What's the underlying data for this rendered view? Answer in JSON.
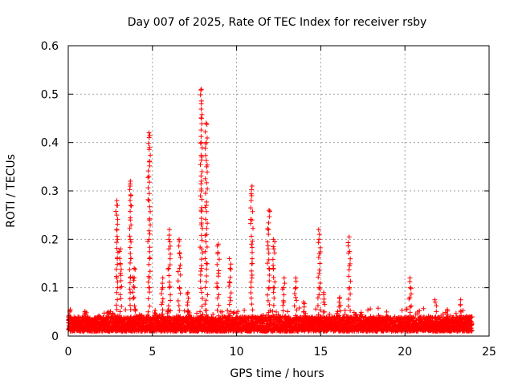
{
  "chart_data": {
    "type": "scatter",
    "title": "Day 007 of 2025, Rate Of TEC Index for receiver rsby",
    "xlabel": "GPS time / hours",
    "ylabel": "ROTI / TECUs",
    "xlim": [
      0,
      25
    ],
    "ylim": [
      0,
      0.6
    ],
    "x_ticks": [
      0,
      5,
      10,
      15,
      20,
      25
    ],
    "y_ticks": [
      0,
      0.1,
      0.2,
      0.3,
      0.4,
      0.5,
      0.6
    ],
    "x_tick_labels": [
      "0",
      "5",
      "10",
      "15",
      "20",
      "25"
    ],
    "y_tick_labels": [
      "0",
      "0.1",
      "0.2",
      "0.3",
      "0.4",
      "0.5",
      "0.6"
    ],
    "grid": true,
    "marker": "+",
    "color": "#ff0000",
    "series": [
      {
        "name": "ROTI",
        "baseline": {
          "x_start": 0.0,
          "x_end": 24.0,
          "typical_low": 0.01,
          "typical_high": 0.04
        },
        "spikes": [
          {
            "x": 0.1,
            "values": [
              0.04,
              0.05,
              0.055
            ]
          },
          {
            "x": 1.0,
            "values": [
              0.045,
              0.05
            ]
          },
          {
            "x": 2.4,
            "values": [
              0.045,
              0.05
            ]
          },
          {
            "x": 2.9,
            "values": [
              0.12,
              0.16,
              0.2,
              0.22,
              0.25,
              0.27,
              0.28
            ]
          },
          {
            "x": 3.1,
            "values": [
              0.1,
              0.13,
              0.15,
              0.18
            ]
          },
          {
            "x": 3.7,
            "values": [
              0.12,
              0.16,
              0.2,
              0.24,
              0.27,
              0.29,
              0.31,
              0.32
            ]
          },
          {
            "x": 3.9,
            "values": [
              0.08,
              0.1,
              0.12,
              0.14
            ]
          },
          {
            "x": 4.8,
            "values": [
              0.1,
              0.12,
              0.16,
              0.2,
              0.24,
              0.28,
              0.33,
              0.36,
              0.39,
              0.41,
              0.42
            ]
          },
          {
            "x": 5.6,
            "values": [
              0.07,
              0.1,
              0.12
            ]
          },
          {
            "x": 6.0,
            "values": [
              0.1,
              0.14,
              0.18,
              0.2,
              0.22
            ]
          },
          {
            "x": 6.6,
            "values": [
              0.1,
              0.14,
              0.17,
              0.2
            ]
          },
          {
            "x": 7.1,
            "values": [
              0.05,
              0.07,
              0.09
            ]
          },
          {
            "x": 7.9,
            "values": [
              0.14,
              0.18,
              0.23,
              0.26,
              0.3,
              0.32,
              0.37,
              0.4,
              0.45,
              0.48,
              0.51
            ]
          },
          {
            "x": 8.2,
            "values": [
              0.15,
              0.21,
              0.27,
              0.35,
              0.4,
              0.44
            ]
          },
          {
            "x": 8.9,
            "values": [
              0.1,
              0.13,
              0.17,
              0.19
            ]
          },
          {
            "x": 9.6,
            "values": [
              0.08,
              0.11,
              0.14,
              0.16
            ]
          },
          {
            "x": 10.9,
            "values": [
              0.12,
              0.15,
              0.19,
              0.24,
              0.29,
              0.31
            ]
          },
          {
            "x": 11.9,
            "values": [
              0.1,
              0.14,
              0.18,
              0.22,
              0.26
            ]
          },
          {
            "x": 12.2,
            "values": [
              0.1,
              0.14,
              0.18,
              0.2
            ]
          },
          {
            "x": 12.8,
            "values": [
              0.07,
              0.1,
              0.12
            ]
          },
          {
            "x": 13.5,
            "values": [
              0.08,
              0.1,
              0.12
            ]
          },
          {
            "x": 14.0,
            "values": [
              0.05,
              0.06,
              0.07
            ]
          },
          {
            "x": 14.9,
            "values": [
              0.1,
              0.13,
              0.17,
              0.2,
              0.22
            ]
          },
          {
            "x": 15.2,
            "values": [
              0.05,
              0.07,
              0.09
            ]
          },
          {
            "x": 16.1,
            "values": [
              0.06,
              0.07,
              0.08
            ]
          },
          {
            "x": 16.7,
            "values": [
              0.1,
              0.145,
              0.175,
              0.205
            ]
          },
          {
            "x": 18.9,
            "values": [
              0.04,
              0.05
            ]
          },
          {
            "x": 20.3,
            "values": [
              0.06,
              0.08,
              0.1,
              0.12
            ]
          },
          {
            "x": 21.8,
            "values": [
              0.07,
              0.075
            ]
          },
          {
            "x": 22.5,
            "values": [
              0.045,
              0.055
            ]
          },
          {
            "x": 23.3,
            "values": [
              0.05,
              0.065,
              0.075
            ]
          }
        ]
      }
    ]
  }
}
